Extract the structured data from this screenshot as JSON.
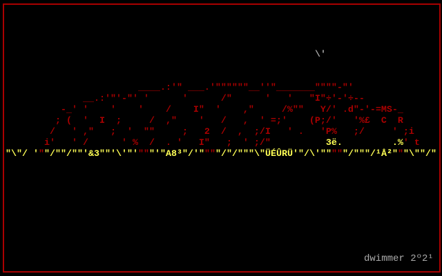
{
  "colors": {
    "border": "#aa0000",
    "rock": "#aa0000",
    "ground": "#ffff55",
    "signature": "#aaaaaa"
  },
  "sky_mark": "\\'",
  "art_lines": [
    [
      {
        "t": "                         ____.:'\" ___.'\"\"\"\"\"\"__''\"_______\"\"\"\"-\"'",
        "c": "#aa0000"
      }
    ],
    [
      {
        "t": "               __.:'\"'-\"' '      '      /\"      '   '   \"I\"÷'-'÷--",
        "c": "#aa0000"
      }
    ],
    [
      {
        "t": "           -_' '    '    '    /    I\"  '    ,\"     /%\"\"   Y/' .d\"-'-=MS-_",
        "c": "#aa0000"
      }
    ],
    [
      {
        "t": "          ; (  '  I  ;     /  ,\"    '   /   ,  ' =;'    (P;/'   '%£  C  R",
        "c": "#aa0000"
      }
    ],
    [
      {
        "t": "         /   ' ,\"   ;  '  \"\"     ;   2  /  ,  ;/I   ' .   'P%   ;/     ' ;i",
        "c": "#aa0000"
      }
    ],
    [
      {
        "t": "        i'   ' /      ' %  /  . '   I\"   ;  ' ;/\"          ",
        "c": "#aa0000"
      },
      {
        "t": "3ë.",
        "c": "#ffff55"
      },
      {
        "t": "         ",
        "c": "#aa0000"
      },
      {
        "t": ".%",
        "c": "#ffff55"
      },
      {
        "t": "' t",
        "c": "#aa0000"
      }
    ],
    [
      {
        "t": " \"\\\"/ '",
        "c": "#ffff55"
      },
      {
        "t": "\"",
        "c": "#aa0000"
      },
      {
        "t": "\"/\"\"/\"\"'",
        "c": "#ffff55"
      },
      {
        "t": "&3",
        "c": "#ffff55"
      },
      {
        "t": "\"\"'\\'\"'",
        "c": "#ffff55"
      },
      {
        "t": "\"\"",
        "c": "#aa0000"
      },
      {
        "t": "\"'\"",
        "c": "#ffff55"
      },
      {
        "t": "A8³",
        "c": "#ffff55"
      },
      {
        "t": "\"/'\"",
        "c": "#ffff55"
      },
      {
        "t": "\"\"",
        "c": "#aa0000"
      },
      {
        "t": "\"/\"/\"\"\"\\\"",
        "c": "#ffff55"
      },
      {
        "t": "ÜÉÛRÜ",
        "c": "#ffff55"
      },
      {
        "t": "'\"/\\'\"\"",
        "c": "#ffff55"
      },
      {
        "t": "\"\"",
        "c": "#aa0000"
      },
      {
        "t": "\"/\"\"\"/",
        "c": "#ffff55"
      },
      {
        "t": "¹Å²",
        "c": "#ffff55"
      },
      {
        "t": "\"",
        "c": "#ffff55"
      },
      {
        "t": "\"",
        "c": "#aa0000"
      },
      {
        "t": "\"\\\"\"/\"",
        "c": "#ffff55"
      }
    ]
  ],
  "signature": "dwimmer 2º2¹"
}
